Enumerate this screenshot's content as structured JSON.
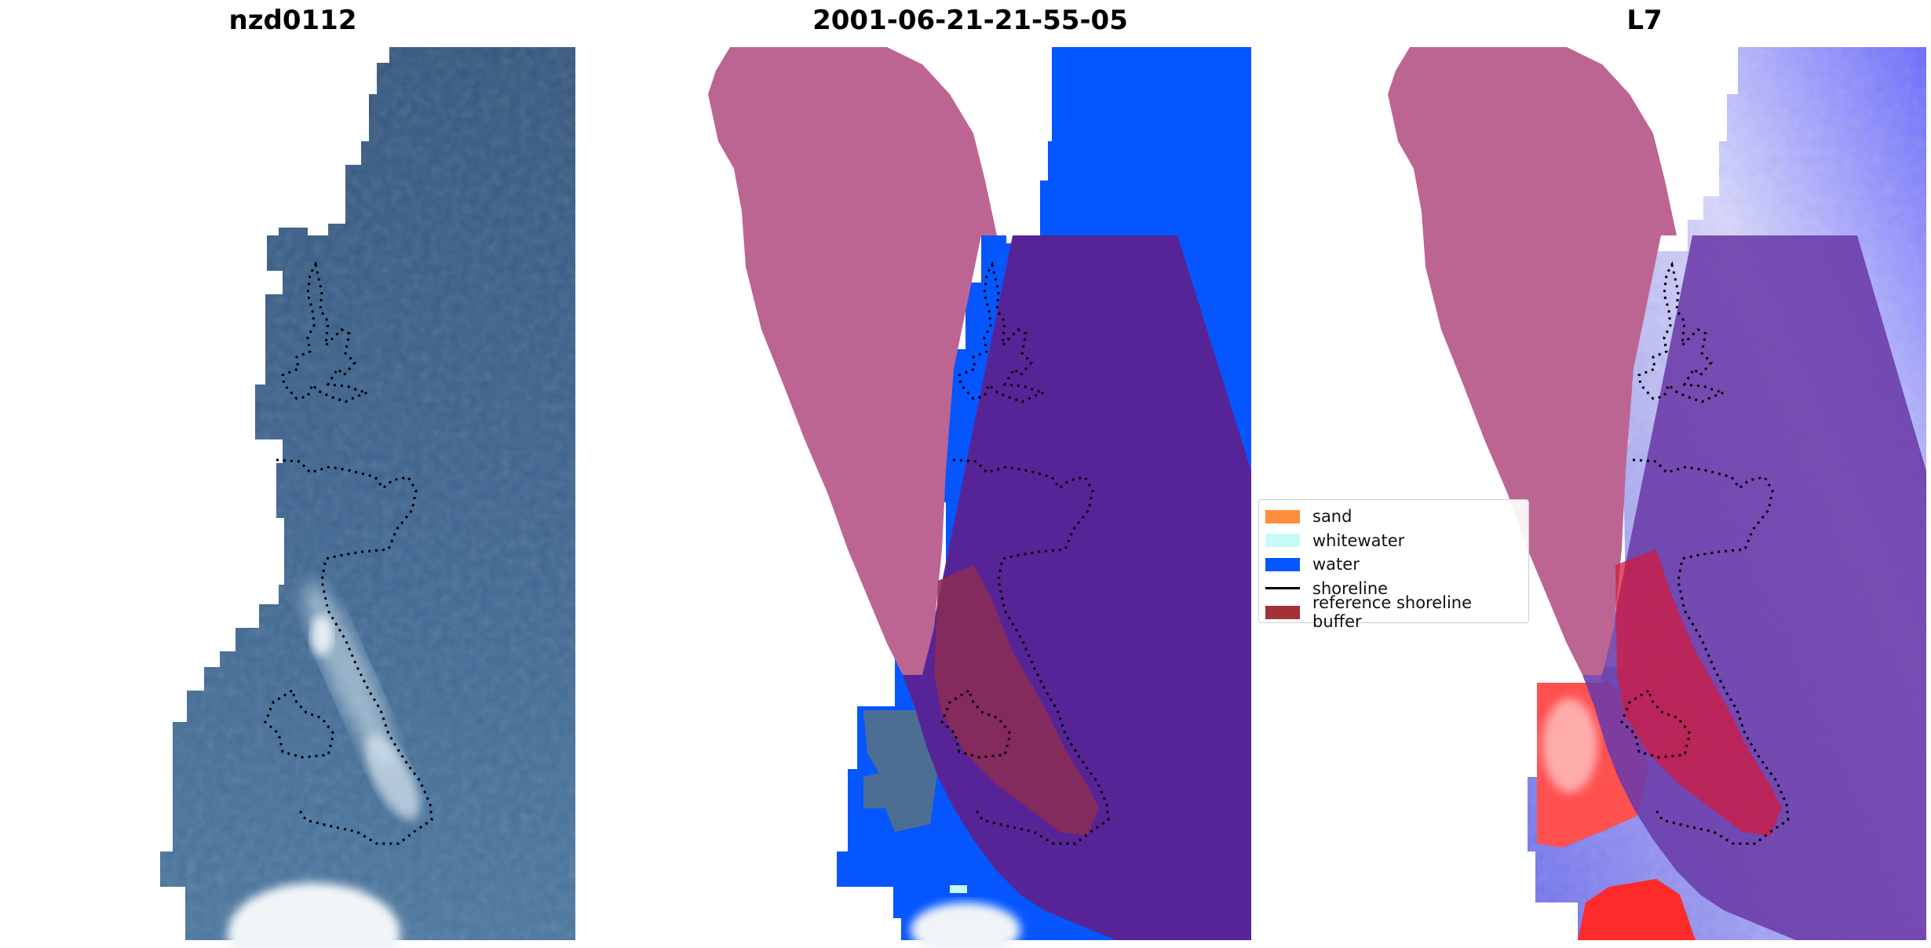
{
  "panels": [
    {
      "title": "nzd0112"
    },
    {
      "title": "2001-06-21-21-55-05"
    },
    {
      "title": "L7"
    }
  ],
  "legend": {
    "items": [
      {
        "label": "sand",
        "color": "#ff8c3a",
        "kind": "patch"
      },
      {
        "label": "whitewater",
        "color": "#c8fbf7",
        "kind": "patch"
      },
      {
        "label": "water",
        "color": "#0556ff",
        "kind": "patch"
      },
      {
        "label": "shoreline",
        "color": "#000000",
        "kind": "line"
      },
      {
        "label": "reference shoreline buffer",
        "color": "#a33237",
        "kind": "patch"
      }
    ]
  },
  "colors": {
    "imagery_blue": "#3f6490",
    "water": "#0556ff",
    "buffer_pink": "#bd6592",
    "buffer_purple": "#572497",
    "buffer_red": "#8a2b55"
  }
}
